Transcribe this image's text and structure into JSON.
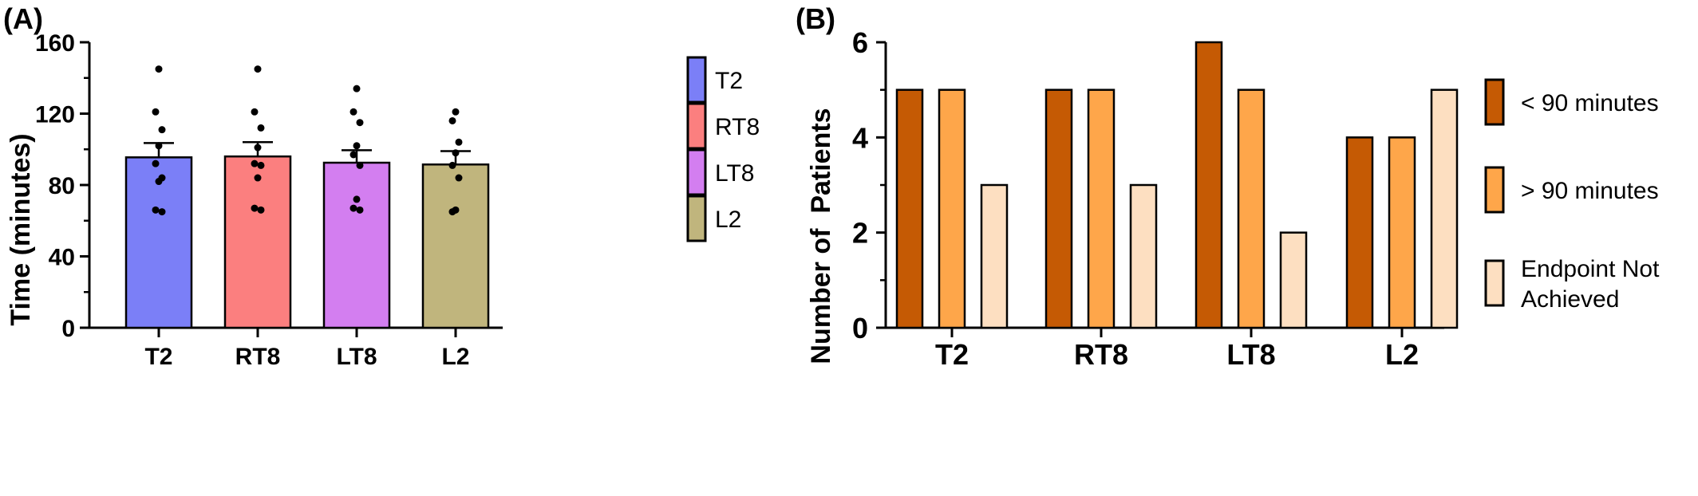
{
  "chart_data": [
    {
      "panel_label": "(A)",
      "type": "bar",
      "categories": [
        "T2",
        "RT8",
        "LT8",
        "L2"
      ],
      "values": [
        95.5,
        96,
        92.5,
        91.5
      ],
      "error": [
        8,
        8,
        7,
        7.5
      ],
      "ylabel": "Time (minutes)",
      "xlabel": "",
      "ylim": [
        0,
        160
      ],
      "yticks": [
        0,
        40,
        80,
        120,
        160
      ],
      "colors": [
        "#7b7ff7",
        "#fb7f7f",
        "#d37ef0",
        "#c0b57d"
      ],
      "legend": [
        "T2",
        "RT8",
        "LT8",
        "L2"
      ],
      "legend_position": "right",
      "points": [
        [
          145,
          121,
          111,
          102,
          92,
          84,
          82,
          66,
          65
        ],
        [
          145,
          121,
          112,
          101,
          92,
          91,
          84,
          67,
          66
        ],
        [
          134,
          121,
          115,
          102,
          97,
          91,
          72,
          67,
          66
        ],
        [
          121,
          116,
          104,
          98,
          91,
          84,
          66,
          65
        ]
      ]
    },
    {
      "panel_label": "(B)",
      "type": "bar",
      "categories": [
        "T2",
        "RT8",
        "LT8",
        "L2"
      ],
      "series": [
        {
          "name": "< 90 minutes",
          "values": [
            5,
            5,
            6,
            4
          ],
          "color": "#c55a04"
        },
        {
          "name": "> 90 minutes",
          "values": [
            5,
            5,
            5,
            4
          ],
          "color": "#fea64a"
        },
        {
          "name": "Endpoint Not Achieved",
          "values": [
            3,
            3,
            2,
            5
          ],
          "color": "#fddfc1"
        }
      ],
      "ylabel": "Number of  Patients",
      "xlabel": "",
      "ylim": [
        0,
        6
      ],
      "yticks": [
        0,
        2,
        4,
        6
      ],
      "legend_position": "right"
    }
  ]
}
